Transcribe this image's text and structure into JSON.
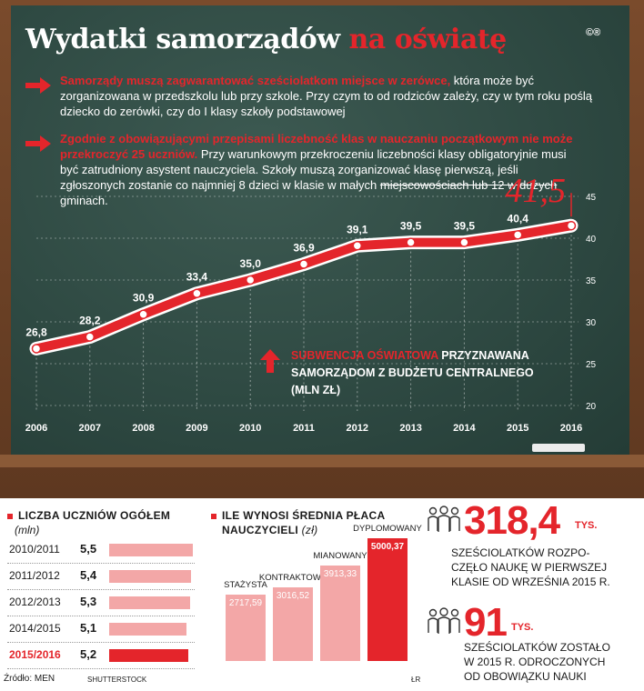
{
  "title": {
    "main": "Wydatki samorządów",
    "accent": "na oświatę",
    "logo": "©®"
  },
  "bullets": [
    {
      "red": "Samorządy muszą zagwarantować sześciolatkom miejsce w zerówce,",
      "white": " która może być zorganizowana w przedszkolu lub przy szkole. Przy czym to od rodziców zależy, czy w tym roku poślą dziecko do zerówki, czy do I klasy szkoły podstawowej"
    },
    {
      "red": "Zgodnie z obowiązującymi przepisami liczebność klas w nauczaniu początkowym nie może przekroczyć 25 uczniów.",
      "white": " Przy warunkowym przekroczeniu liczebności klasy obligatoryjnie musi być zatrudniony asystent nauczyciela. Szkoły muszą zorganizować klasę pierwszą, jeśli zgłoszonych zostanie co najmniej 8 dzieci w klasie w małych ",
      "strike": "miejscowościach lub 12 w dużych",
      "tail": " gminach."
    }
  ],
  "chart_data": {
    "type": "line",
    "x": [
      "2006",
      "2007",
      "2008",
      "2009",
      "2010",
      "2011",
      "2012",
      "2013",
      "2014",
      "2015",
      "2016"
    ],
    "values": [
      26.8,
      28.2,
      30.9,
      33.4,
      35.0,
      36.9,
      39.1,
      39.5,
      39.5,
      40.4,
      41.5
    ],
    "data_labels": [
      "26,8",
      "28,2",
      "30,9",
      "33,4",
      "35,0",
      "36,9",
      "39,1",
      "39,5",
      "39,5",
      "40,4",
      "41,5"
    ],
    "yticks": [
      "20",
      "25",
      "30",
      "35",
      "40",
      "45"
    ],
    "ylim": [
      20,
      45
    ],
    "line_color": "#e4252b",
    "legend_red": "SUBWENCJA OŚWIATOWA",
    "legend_rest": " PRZYZNAWANA SAMORZĄDOM Z BUDŻETU CENTRALNEGO (MLN ZŁ)"
  },
  "students": {
    "title": "LICZBA UCZNIÓW OGÓŁEM",
    "unit": "(mln)",
    "rows": [
      {
        "year": "2010/2011",
        "value": "5,5",
        "v": 5.5
      },
      {
        "year": "2011/2012",
        "value": "5,4",
        "v": 5.4
      },
      {
        "year": "2012/2013",
        "value": "5,3",
        "v": 5.3
      },
      {
        "year": "2014/2015",
        "value": "5,1",
        "v": 5.1
      },
      {
        "year": "2015/2016",
        "value": "5,2",
        "v": 5.2
      }
    ]
  },
  "salary": {
    "title": "ILE WYNOSI ŚREDNIA PŁACA",
    "title2": "NAUCZYCIELI",
    "unit": "(zł)",
    "bars": [
      {
        "label": "STAŻYSTA",
        "value": "2717,59",
        "v": 2717.59
      },
      {
        "label": "KONTRAKTOWY",
        "value": "3016,52",
        "v": 3016.52
      },
      {
        "label": "MIANOWANY",
        "value": "3913,33",
        "v": 3913.33
      },
      {
        "label": "DYPLOMOWANY",
        "value": "5000,37",
        "v": 5000.37
      }
    ]
  },
  "stat1": {
    "number": "318,4",
    "unit": "TYS.",
    "line1": "SZEŚCIOLATKÓW ROZPO-",
    "line2": "CZĘŁO NAUKĘ W PIERWSZEJ",
    "line3": "KLASIE OD WRZEŚNIA 2015 R."
  },
  "stat2": {
    "number": "91",
    "unit": "TYS.",
    "line1": "SZEŚCIOLATKÓW ZOSTAŁO",
    "line2": "W 2015 R. ODROCZONYCH",
    "line3": "OD OBOWIĄZKU NAUKI"
  },
  "footer": {
    "source": "Źródło: MEN",
    "photo": "SHUTTERSTOCK",
    "author": "ŁR"
  },
  "colors": {
    "accent": "#e4252b",
    "bar_light": "#f3a7a7"
  }
}
